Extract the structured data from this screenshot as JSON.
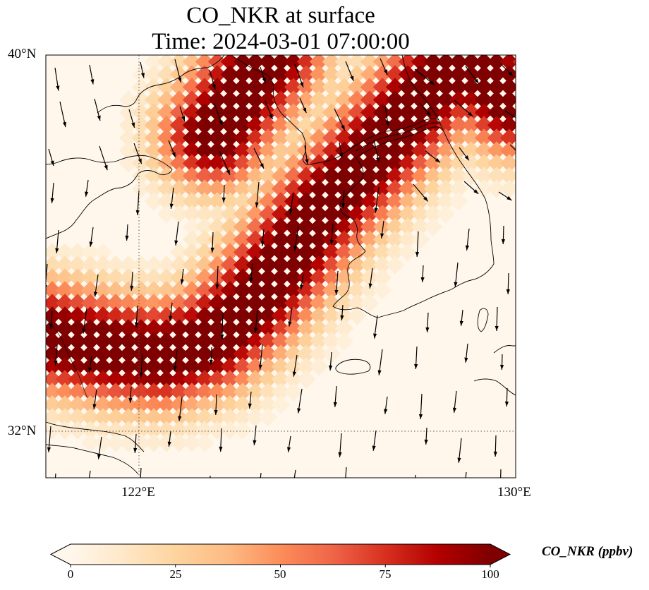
{
  "title": {
    "line1": "CO_NKR at surface",
    "line2": "Time: 2024-03-01 07:00:00"
  },
  "map": {
    "lon_range": [
      120,
      130
    ],
    "lat_range": [
      31,
      40
    ],
    "gridlines": {
      "lon": 122,
      "lat": 32,
      "style": "dotted"
    },
    "lat_labels": [
      "40°N",
      "32°N"
    ],
    "lon_labels": [
      "122°E",
      "130°E"
    ],
    "features": [
      "coastlines",
      "national-borders",
      "wind-vectors",
      "jeju-island"
    ],
    "wind_direction": "predominantly southward"
  },
  "colorbar": {
    "colormap": "OrRd",
    "colors": [
      "#fff7ec",
      "#fee8c8",
      "#fdd49e",
      "#fdbb84",
      "#fc8d59",
      "#ef6548",
      "#d7301f",
      "#b30000",
      "#7f0000"
    ],
    "ticks": [
      "0",
      "25",
      "50",
      "75",
      "100"
    ],
    "min": 0,
    "max": 100,
    "extend": "both",
    "label": "CO_NKR (ppbv)"
  },
  "chart_data": {
    "type": "heatmap",
    "title": "CO_NKR at surface\nTime: 2024-03-01 07:00:00",
    "variable": "CO_NKR",
    "units": "ppbv",
    "time": "2024-03-01 07:00:00",
    "x_range": [
      120,
      130
    ],
    "y_range": [
      31,
      40
    ],
    "plumes": [
      {
        "name": "",
        "path_lon_lat": [
          [
            120,
            34.0
          ],
          [
            121.5,
            33.7
          ],
          [
            122.5,
            33.6
          ],
          [
            123.5,
            33.9
          ],
          [
            124.3,
            34.6
          ],
          [
            125.1,
            35.6
          ],
          [
            125.8,
            36.6
          ],
          [
            126.8,
            37.7
          ],
          [
            128.2,
            39.3
          ],
          [
            129,
            40
          ]
        ],
        "peak_ppbv": 100
      },
      {
        "name": "",
        "path_lon_lat": [
          [
            123.6,
            38.3
          ],
          [
            124.2,
            39.2
          ],
          [
            124.8,
            40
          ]
        ],
        "peak_ppbv": 100
      },
      {
        "name": "",
        "path_lon_lat": [
          [
            128.8,
            40
          ],
          [
            130,
            39.0
          ]
        ],
        "peak_ppbv": 100
      }
    ],
    "background_ppbv": 5
  }
}
